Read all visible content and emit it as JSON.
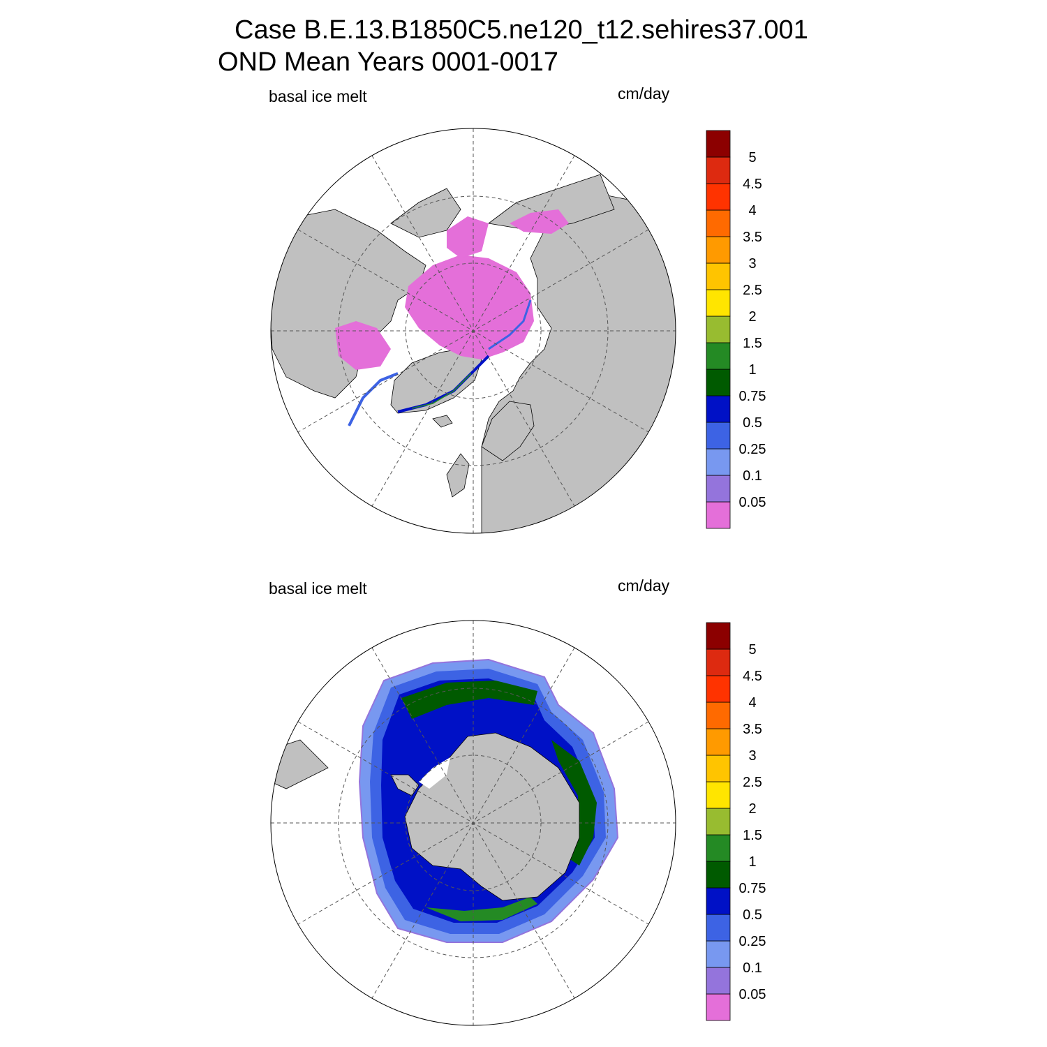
{
  "title": {
    "line1": "Case B.E.13.B1850C5.ne120_t12.sehires37.001",
    "line2": "OND Mean   Years 0001-0017"
  },
  "panels": [
    {
      "id": "north",
      "hemisphere": "Northern",
      "left_label": "basal ice melt",
      "right_label": "cm/day"
    },
    {
      "id": "south",
      "hemisphere": "Southern",
      "left_label": "basal ice melt",
      "right_label": "cm/day"
    }
  ],
  "colorbar": {
    "levels": [
      "0.05",
      "0.1",
      "0.25",
      "0.5",
      "0.75",
      "1",
      "1.5",
      "2",
      "2.5",
      "3",
      "3.5",
      "4",
      "4.5",
      "5"
    ],
    "colors": [
      "#e46fd9",
      "#9474dc",
      "#7898f0",
      "#3d63e4",
      "#0011c6",
      "#005a00",
      "#248a24",
      "#98bc30",
      "#ffe500",
      "#ffc400",
      "#ff9a00",
      "#ff6a00",
      "#ff3300",
      "#dd2a10",
      "#8c0000"
    ]
  },
  "colors": {
    "land": "#c0c0c0",
    "ocean": "#ffffff",
    "grid": "#555555"
  }
}
